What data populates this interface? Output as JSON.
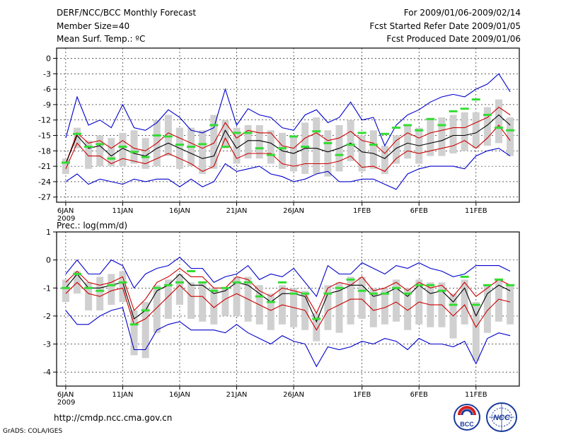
{
  "header": {
    "title": "DERF/NCC/BCC Monthly Forecast",
    "member_size": "Member Size=40",
    "variable": "Mean Surf. Temp.: ºC",
    "forecast_period": "For 2009/01/06-2009/02/14",
    "fcst_started": "Fcst Started Refer Date 2009/01/05",
    "fcst_produced": "Fcst Produced Date 2009/01/06"
  },
  "footer": {
    "url": "http://cmdp.ncc.cma.gov.cn",
    "grads": "GrADS: COLA/IGES",
    "logo_bcc": "BCC",
    "logo_ncc": "NCC"
  },
  "colors": {
    "bar": "#d0d0d0",
    "member": "#33dd33",
    "mean": "#000000",
    "spread": "#cc0000",
    "extreme": "#0000cc"
  },
  "chart_data": [
    {
      "type": "line",
      "title": "Mean Surf. Temp.: ºC",
      "x_labels": [
        "6JAN",
        "11JAN",
        "16JAN",
        "21JAN",
        "26JAN",
        "1FEB",
        "6FEB",
        "11FEB"
      ],
      "x_label_days": [
        0,
        5,
        10,
        15,
        20,
        26,
        31,
        36
      ],
      "year_label": "2009",
      "ylim": [
        -28,
        2
      ],
      "yticks": [
        0,
        -3,
        -6,
        -9,
        -12,
        -15,
        -18,
        -21,
        -24,
        -27
      ],
      "days": 40,
      "series": [
        {
          "name": "max",
          "values": [
            -15.5,
            -7.5,
            -13,
            -12,
            -13.5,
            -9,
            -13.5,
            -14,
            -12.5,
            -10,
            -11.5,
            -14,
            -14.5,
            -13.5,
            -6,
            -13,
            -9.8,
            -11,
            -11.5,
            -13.5,
            -14,
            -11,
            -10,
            -12.5,
            -11.5,
            -8.5,
            -12,
            -11.5,
            -17,
            -13,
            -11,
            -10,
            -8.5,
            -7.5,
            -7,
            -7.5,
            -6,
            -5,
            -3,
            -6.5
          ]
        },
        {
          "name": "upper",
          "values": [
            -20.5,
            -14.5,
            -16.5,
            -16,
            -17.5,
            -16,
            -17.5,
            -18,
            -16.5,
            -14.5,
            -15.5,
            -16.5,
            -17.5,
            -16.5,
            -12.5,
            -15.5,
            -14,
            -14.5,
            -14.5,
            -17,
            -17.5,
            -15.5,
            -14.5,
            -16,
            -15.5,
            -14.2,
            -16,
            -16.5,
            -18.5,
            -16,
            -14.5,
            -15.5,
            -14.5,
            -14,
            -13.5,
            -13.5,
            -12.5,
            -11.5,
            -9.5,
            -11
          ]
        },
        {
          "name": "mean",
          "values": [
            -20.5,
            -15,
            -17.5,
            -17,
            -19,
            -17.5,
            -18.5,
            -19,
            -17.5,
            -16.5,
            -17.5,
            -18.5,
            -19.5,
            -19,
            -14,
            -17.5,
            -16,
            -16,
            -16.5,
            -18,
            -18.5,
            -17.5,
            -17.5,
            -18.2,
            -17.5,
            -16.5,
            -18.2,
            -18.5,
            -19.5,
            -17.5,
            -16.5,
            -17,
            -16.5,
            -16,
            -15,
            -15,
            -14.5,
            -13,
            -11,
            -13
          ]
        },
        {
          "name": "lower",
          "values": [
            -21.5,
            -16.5,
            -19,
            -19,
            -20.5,
            -19.5,
            -20,
            -20.5,
            -19.5,
            -18.5,
            -19.5,
            -20.5,
            -22,
            -21,
            -15.5,
            -19.5,
            -18.5,
            -18.5,
            -18.5,
            -20.5,
            -21,
            -20.5,
            -20.5,
            -20.5,
            -20,
            -19,
            -21.2,
            -21,
            -22,
            -19.5,
            -18,
            -18.5,
            -18,
            -17.5,
            -17,
            -16,
            -17.5,
            -15.5,
            -13,
            -16
          ]
        },
        {
          "name": "min",
          "values": [
            -24,
            -22.5,
            -24.5,
            -23.5,
            -24,
            -24.5,
            -23.5,
            -24,
            -23.5,
            -23.5,
            -25,
            -23.5,
            -25,
            -24,
            -20.5,
            -22,
            -21.5,
            -21,
            -22.5,
            -23,
            -24,
            -23.5,
            -22.5,
            -22,
            -24,
            -24,
            -23.5,
            -23.5,
            -24.5,
            -25.5,
            -22.5,
            -21.5,
            -21,
            -21,
            -21,
            -21.5,
            -19,
            -18,
            -17.5,
            -19
          ]
        },
        {
          "name": "member",
          "values": [
            -20.3,
            -14.7,
            -17.2,
            -16.7,
            -19.5,
            -17.2,
            -18.2,
            -19.2,
            -15,
            -15.2,
            -16.8,
            -17.2,
            -16.7,
            -13,
            -17.2,
            -14.5,
            -14.5,
            -17.5,
            -18.8,
            -17.5,
            -15.2,
            -17.2,
            -14.2,
            -16.5,
            -18.8,
            -16.8,
            -14.5,
            -16.8,
            -14.7,
            -13.5,
            -13,
            -14,
            -11.8,
            -13,
            -10.3,
            -9.8,
            -8,
            -11,
            -13.5,
            -14
          ]
        },
        {
          "name": "bar_top",
          "values": [
            -19.5,
            -13.5,
            -16,
            -15,
            -15.5,
            -14.5,
            -14,
            -15.5,
            -12,
            -11,
            -13.5,
            -13.5,
            -14,
            -11,
            -12,
            -13.5,
            -13,
            -13,
            -14,
            -14.5,
            -15,
            -12.5,
            -11.5,
            -14,
            -13,
            -12,
            -15,
            -14,
            -17,
            -15,
            -13,
            -13.5,
            -12,
            -11.5,
            -11,
            -10.5,
            -10.5,
            -9.5,
            -8,
            -11.5
          ]
        },
        {
          "name": "bar_bottom",
          "values": [
            -22.5,
            -17.5,
            -21.5,
            -21,
            -21,
            -21,
            -20.5,
            -21.5,
            -21,
            -19,
            -21.5,
            -21,
            -22.5,
            -21.5,
            -17.5,
            -20.5,
            -19.5,
            -19.5,
            -20.5,
            -21.5,
            -22,
            -22.5,
            -22.5,
            -23,
            -22,
            -20,
            -22,
            -21.5,
            -22.5,
            -20.5,
            -19.5,
            -20.5,
            -19,
            -19,
            -18.5,
            -18,
            -17.5,
            -17,
            -16.5,
            -19
          ]
        }
      ]
    },
    {
      "type": "line",
      "title": "Prec.: log(mm/d)",
      "x_labels": [
        "6JAN",
        "11JAN",
        "16JAN",
        "21JAN",
        "26JAN",
        "1FEB",
        "6FEB",
        "11FEB"
      ],
      "x_label_days": [
        0,
        5,
        10,
        15,
        20,
        26,
        31,
        36
      ],
      "year_label": "2009",
      "ylim": [
        -4.5,
        1
      ],
      "yticks": [
        1,
        0,
        -1,
        -2,
        -3,
        -4
      ],
      "days": 40,
      "series": [
        {
          "name": "max",
          "values": [
            -0.5,
            0,
            -0.5,
            -0.5,
            0,
            -0.2,
            -1,
            -0.5,
            -0.3,
            -0.2,
            0.1,
            -0.3,
            -0.3,
            -0.8,
            -0.6,
            -0.5,
            -0.2,
            -0.7,
            -0.5,
            -0.6,
            -0.3,
            -0.8,
            -1.3,
            -0.2,
            -0.5,
            -0.5,
            -0.1,
            -0.3,
            -0.5,
            -0.2,
            -0.3,
            -0.1,
            -0.3,
            -0.4,
            -0.6,
            -0.5,
            -0.2,
            -0.2,
            -0.2,
            -0.4
          ]
        },
        {
          "name": "upper",
          "values": [
            -0.8,
            -0.4,
            -0.8,
            -0.9,
            -0.8,
            -0.6,
            -1.8,
            -1.4,
            -0.8,
            -0.6,
            -0.3,
            -0.6,
            -0.6,
            -1,
            -1,
            -0.6,
            -0.7,
            -1.1,
            -1.3,
            -1,
            -1.1,
            -1.2,
            -1.9,
            -1,
            -0.8,
            -0.9,
            -0.6,
            -1.1,
            -1,
            -0.8,
            -1.1,
            -0.8,
            -1,
            -0.9,
            -1.3,
            -0.8,
            -1.3,
            -1,
            -0.7,
            -0.9
          ]
        },
        {
          "name": "mean",
          "values": [
            -1,
            -0.5,
            -1,
            -1,
            -0.9,
            -0.8,
            -2.1,
            -1.8,
            -1.1,
            -0.9,
            -0.5,
            -0.9,
            -0.9,
            -1.2,
            -1.1,
            -0.8,
            -0.9,
            -1.2,
            -1.5,
            -1.2,
            -1.2,
            -1.3,
            -2.2,
            -1.2,
            -1.1,
            -0.9,
            -0.9,
            -1.3,
            -1.2,
            -1,
            -1.3,
            -0.9,
            -1.2,
            -1.1,
            -1.5,
            -1,
            -2,
            -1.2,
            -0.9,
            -1.1
          ]
        },
        {
          "name": "lower",
          "values": [
            -1.2,
            -0.8,
            -1.2,
            -1.3,
            -1.1,
            -1,
            -2.3,
            -2.1,
            -1.7,
            -1.3,
            -0.9,
            -1.3,
            -1.3,
            -1.7,
            -1.4,
            -1.2,
            -1.4,
            -1.6,
            -1.8,
            -1.6,
            -1.7,
            -1.8,
            -2.5,
            -1.8,
            -1.6,
            -1.4,
            -1.4,
            -1.8,
            -1.7,
            -1.5,
            -1.8,
            -1.5,
            -1.6,
            -1.6,
            -2,
            -1.6,
            -2.4,
            -1.8,
            -1.4,
            -1.5
          ]
        },
        {
          "name": "min",
          "values": [
            -1.8,
            -2.3,
            -2.3,
            -2,
            -1.8,
            -1.7,
            -3.2,
            -3.2,
            -2.5,
            -2.3,
            -2.2,
            -2.5,
            -2.5,
            -2.5,
            -2.6,
            -2.3,
            -2.6,
            -2.8,
            -3,
            -2.7,
            -2.9,
            -3,
            -3.8,
            -3.1,
            -3.2,
            -3.1,
            -2.9,
            -3,
            -2.8,
            -2.9,
            -3.2,
            -2.8,
            -3,
            -3,
            -3.1,
            -2.9,
            -3.7,
            -2.8,
            -2.6,
            -2.7
          ]
        },
        {
          "name": "member",
          "values": [
            -1,
            -0.5,
            -1,
            -1.1,
            -0.9,
            -0.8,
            -2.3,
            -1.8,
            -1,
            -0.9,
            -0.8,
            -0.4,
            -0.8,
            -1.1,
            -1,
            -0.8,
            -0.8,
            -1.3,
            -1.5,
            -0.8,
            -1.2,
            -1.2,
            -2.1,
            -1.2,
            -1,
            -0.7,
            -1.1,
            -1.2,
            -1.2,
            -1,
            -1.2,
            -0.9,
            -0.9,
            -1.1,
            -1.6,
            -0.6,
            -1.6,
            -0.9,
            -0.7,
            -0.9
          ]
        },
        {
          "name": "bar_top",
          "values": [
            -0.7,
            -0.4,
            -0.8,
            -0.6,
            -0.5,
            -0.4,
            -1.8,
            -1.5,
            -0.9,
            -0.7,
            -0.5,
            -0.8,
            -0.8,
            -1,
            -1,
            -0.6,
            -0.6,
            -0.9,
            -1.2,
            -0.9,
            -1,
            -1.1,
            -1.9,
            -0.9,
            -0.8,
            -0.6,
            -0.6,
            -1,
            -1,
            -0.7,
            -1,
            -0.7,
            -0.8,
            -0.8,
            -1.2,
            -0.7,
            -1.5,
            -0.9,
            -0.7,
            -0.9
          ]
        },
        {
          "name": "bar_bottom",
          "values": [
            -1.5,
            -1.2,
            -1.8,
            -1.8,
            -1.6,
            -1.5,
            -3.4,
            -3.5,
            -2.6,
            -2.1,
            -1.6,
            -2.1,
            -2.2,
            -2.3,
            -2,
            -2,
            -2.2,
            -2.3,
            -2.5,
            -2.3,
            -2.4,
            -2.5,
            -2.9,
            -2.5,
            -2.6,
            -2.3,
            -2.1,
            -2.4,
            -2.3,
            -2.2,
            -2.5,
            -2.3,
            -2.4,
            -2.4,
            -2.8,
            -2.3,
            -3.6,
            -2.6,
            -2.2,
            -2.3
          ]
        }
      ]
    }
  ]
}
